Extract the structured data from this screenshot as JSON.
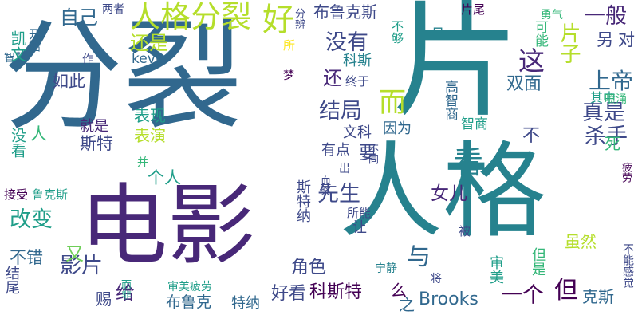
{
  "palette": {
    "dark_purple": "#440154",
    "purple": "#482878",
    "indigo": "#3e4989",
    "blue": "#31688e",
    "steel": "#26828e",
    "teal": "#1f9e89",
    "green": "#35b779",
    "light_green": "#6ece58",
    "lime": "#b5de2b",
    "yellow": "#fde725"
  },
  "words": [
    {
      "text": "分裂",
      "color": "#31688e",
      "vertical": false
    },
    {
      "text": "电影",
      "color": "#482878",
      "vertical": false
    },
    {
      "text": "人格",
      "color": "#26828e",
      "vertical": false
    },
    {
      "text": "片",
      "color": "#26828e",
      "vertical": false
    },
    {
      "text": "人格分裂",
      "color": "#b5de2b",
      "vertical": false
    },
    {
      "text": "布鲁克斯",
      "color": "#3e4989",
      "vertical": false
    },
    {
      "text": "自己",
      "color": "#31688e",
      "vertical": false
    },
    {
      "text": "好",
      "color": "#b5de2b",
      "vertical": true
    },
    {
      "text": "还是",
      "color": "#b5de2b",
      "vertical": false
    },
    {
      "text": "kevin",
      "color": "#31688e",
      "vertical": false
    },
    {
      "text": "没有",
      "color": "#3e4989",
      "vertical": false
    },
    {
      "text": "这",
      "color": "#482878",
      "vertical": false
    },
    {
      "text": "片子",
      "color": "#b5de2b",
      "vertical": true
    },
    {
      "text": "一般",
      "color": "#482878",
      "vertical": false
    },
    {
      "text": "另",
      "color": "#3e4989",
      "vertical": false
    },
    {
      "text": "对",
      "color": "#3e4989",
      "vertical": false
    },
    {
      "text": "双面",
      "color": "#31688e",
      "vertical": false
    },
    {
      "text": "上帝",
      "color": "#31688e",
      "vertical": false
    },
    {
      "text": "如此",
      "color": "#3e4989",
      "vertical": false
    },
    {
      "text": "还",
      "color": "#482878",
      "vertical": false
    },
    {
      "text": "结局",
      "color": "#3e4989",
      "vertical": false
    },
    {
      "text": "而",
      "color": "#b5de2b",
      "vertical": false
    },
    {
      "text": "真是",
      "color": "#3e4989",
      "vertical": false
    },
    {
      "text": "杀手",
      "color": "#3e4989",
      "vertical": false
    },
    {
      "text": "不",
      "color": "#3e4989",
      "vertical": false
    },
    {
      "text": "看",
      "color": "#26828e",
      "vertical": false
    },
    {
      "text": "表现",
      "color": "#1f9e89",
      "vertical": false
    },
    {
      "text": "就是",
      "color": "#482878",
      "vertical": false
    },
    {
      "text": "斯特",
      "color": "#3e4989",
      "vertical": false
    },
    {
      "text": "表演",
      "color": "#b5de2b",
      "vertical": false
    },
    {
      "text": "个人",
      "color": "#1f9e89",
      "vertical": false
    },
    {
      "text": "先生",
      "color": "#3e4989",
      "vertical": false
    },
    {
      "text": "女儿",
      "color": "#482878",
      "vertical": false
    },
    {
      "text": "改变",
      "color": "#1f9e89",
      "vertical": false
    },
    {
      "text": "角色",
      "color": "#3e4989",
      "vertical": false
    },
    {
      "text": "与",
      "color": "#31688e",
      "vertical": false
    },
    {
      "text": "影片",
      "color": "#3e4989",
      "vertical": false
    },
    {
      "text": "给",
      "color": "#482878",
      "vertical": false
    },
    {
      "text": "好看",
      "color": "#3e4989",
      "vertical": false
    },
    {
      "text": "科斯特",
      "color": "#440154",
      "vertical": false
    },
    {
      "text": "Brooks",
      "color": "#31688e",
      "vertical": false
    },
    {
      "text": "一个",
      "color": "#440154",
      "vertical": false
    },
    {
      "text": "但",
      "color": "#440154",
      "vertical": false
    },
    {
      "text": "克斯",
      "color": "#31688e",
      "vertical": false
    },
    {
      "text": "不错",
      "color": "#31688e",
      "vertical": false
    },
    {
      "text": "又",
      "color": "#6ece58",
      "vertical": false
    },
    {
      "text": "赐",
      "color": "#3e4989",
      "vertical": false
    },
    {
      "text": "布鲁克",
      "color": "#31688e",
      "vertical": false
    },
    {
      "text": "特纳",
      "color": "#31688e",
      "vertical": false
    },
    {
      "text": "之",
      "color": "#31688e",
      "vertical": false
    },
    {
      "text": "么",
      "color": "#440154",
      "vertical": false
    },
    {
      "text": "科斯",
      "color": "#26828e",
      "vertical": false
    },
    {
      "text": "文科",
      "color": "#3e4989",
      "vertical": false
    },
    {
      "text": "因为",
      "color": "#31688e",
      "vertical": false
    },
    {
      "text": "有点",
      "color": "#3e4989",
      "vertical": false
    },
    {
      "text": "要",
      "color": "#3e4989",
      "vertical": false
    },
    {
      "text": "智商",
      "color": "#1f9e89",
      "vertical": false
    },
    {
      "text": "其中",
      "color": "#1f9e89",
      "vertical": false
    },
    {
      "text": "终于",
      "color": "#3e4989",
      "vertical": false
    },
    {
      "text": "且",
      "color": "#26828e",
      "vertical": false
    },
    {
      "text": "片尾",
      "color": "#440154",
      "vertical": false
    },
    {
      "text": "两者",
      "color": "#3e4989",
      "vertical": false
    },
    {
      "text": "作",
      "color": "#3e4989",
      "vertical": false
    },
    {
      "text": "梦",
      "color": "#440154",
      "vertical": false
    },
    {
      "text": "所",
      "color": "#fde725",
      "vertical": false
    },
    {
      "text": "鲁克斯",
      "color": "#1f9e89",
      "vertical": false
    },
    {
      "text": "接受",
      "color": "#440154",
      "vertical": false
    },
    {
      "text": "智慧",
      "color": "#31688e",
      "vertical": false
    },
    {
      "text": "所能",
      "color": "#3e4989",
      "vertical": false
    },
    {
      "text": "被",
      "color": "#3e4989",
      "vertical": false
    },
    {
      "text": "虽然",
      "color": "#b5de2b",
      "vertical": false
    },
    {
      "text": "宁静",
      "color": "#26828e",
      "vertical": false
    },
    {
      "text": "审美疲劳",
      "color": "#1f9e89",
      "vertical": false
    },
    {
      "text": "将",
      "color": "#3e4989",
      "vertical": false
    },
    {
      "text": "人",
      "color": "#35b779",
      "vertical": false
    },
    {
      "text": "并",
      "color": "#35b779",
      "vertical": false
    },
    {
      "text": "出",
      "color": "#3e4989",
      "vertical": false
    },
    {
      "text": "死",
      "color": "#35b779",
      "vertical": false
    },
    {
      "text": "喷涌",
      "color": "#35b779",
      "vertical": false
    },
    {
      "text": "勇气",
      "color": "#35b779",
      "vertical": false
    },
    {
      "text": "凯文",
      "color": "#1f9e89",
      "vertical": true
    },
    {
      "text": "开始",
      "color": "#31688e",
      "vertical": true
    },
    {
      "text": "没看",
      "color": "#1f9e89",
      "vertical": true
    },
    {
      "text": "结尾",
      "color": "#3e4989",
      "vertical": true
    },
    {
      "text": "不够",
      "color": "#1f9e89",
      "vertical": true
    },
    {
      "text": "分辨",
      "color": "#3e4989",
      "vertical": true
    },
    {
      "text": "可能",
      "color": "#35b779",
      "vertical": true
    },
    {
      "text": "高智商",
      "color": "#31688e",
      "vertical": true
    },
    {
      "text": "斯特纳",
      "color": "#3e4989",
      "vertical": true
    },
    {
      "text": "不同",
      "color": "#3e4989",
      "vertical": true
    },
    {
      "text": "血浆",
      "color": "#3e4989",
      "vertical": true
    },
    {
      "text": "让",
      "color": "#3e4989",
      "vertical": true
    },
    {
      "text": "审美",
      "color": "#1f9e89",
      "vertical": true
    },
    {
      "text": "但是",
      "color": "#35b779",
      "vertical": true
    },
    {
      "text": "疲劳",
      "color": "#440154",
      "vertical": true
    },
    {
      "text": "不能感觉",
      "color": "#3e4989",
      "vertical": true
    },
    {
      "text": "而非",
      "color": "#1f9e89",
      "vertical": true
    }
  ]
}
